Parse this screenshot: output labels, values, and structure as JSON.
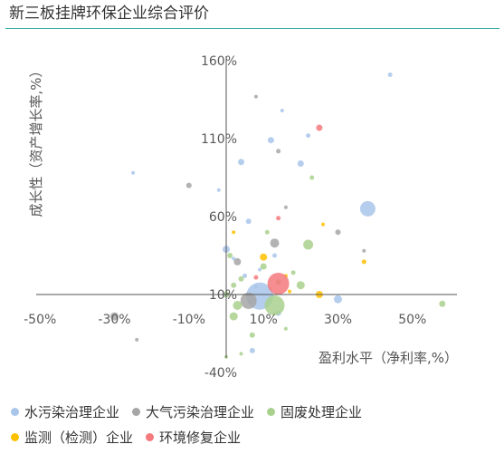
{
  "title": "新三板挂牌环保企业综合评价",
  "chart_data": {
    "type": "scatter",
    "title": "",
    "xlabel": "盈利水平（净利率,%）",
    "ylabel": "成长性（资产增长率,%）",
    "xlim": [
      -50,
      60
    ],
    "ylim": [
      -40,
      160
    ],
    "x_ticks": [
      "-50%",
      "-30%",
      "-10%",
      "10%",
      "30%",
      "50%"
    ],
    "y_ticks": [
      "160%",
      "110%",
      "60%",
      "10%",
      "-40%"
    ],
    "grid": false,
    "legend_position": "bottom",
    "colors": {
      "water": "#a9c6ea",
      "air": "#a6a6a6",
      "solid": "#a9d18e",
      "monitor": "#ffc000",
      "remediation": "#f4797c"
    },
    "series": [
      {
        "name": "水污染治理企业",
        "key": "water",
        "points": [
          {
            "x": 44,
            "y": 151,
            "size": 5
          },
          {
            "x": 12,
            "y": 109,
            "size": 7
          },
          {
            "x": 20,
            "y": 94,
            "size": 7
          },
          {
            "x": 4,
            "y": 95,
            "size": 7
          },
          {
            "x": -25,
            "y": 88,
            "size": 4
          },
          {
            "x": 38,
            "y": 65,
            "size": 17
          },
          {
            "x": 6,
            "y": 57,
            "size": 6
          },
          {
            "x": 0,
            "y": 39,
            "size": 8
          },
          {
            "x": 13,
            "y": 35,
            "size": 5
          },
          {
            "x": 2,
            "y": 33,
            "size": 4
          },
          {
            "x": 9,
            "y": 26,
            "size": 4
          },
          {
            "x": 5,
            "y": 22,
            "size": 5
          },
          {
            "x": 8,
            "y": 15,
            "size": 4
          },
          {
            "x": 9,
            "y": 9,
            "size": 30
          },
          {
            "x": 30,
            "y": 7,
            "size": 9
          },
          {
            "x": 14,
            "y": -2,
            "size": 6
          },
          {
            "x": 7,
            "y": -26,
            "size": 6
          },
          {
            "x": 15,
            "y": 128,
            "size": 4
          },
          {
            "x": 22,
            "y": 112,
            "size": 5
          },
          {
            "x": -2,
            "y": 77,
            "size": 4
          }
        ]
      },
      {
        "name": "大气污染治理企业",
        "key": "air",
        "points": [
          {
            "x": 8,
            "y": 137,
            "size": 4
          },
          {
            "x": 14,
            "y": 102,
            "size": 5
          },
          {
            "x": -10,
            "y": 80,
            "size": 6
          },
          {
            "x": 16,
            "y": 66,
            "size": 4
          },
          {
            "x": 30,
            "y": 50,
            "size": 6
          },
          {
            "x": 13,
            "y": 43,
            "size": 10
          },
          {
            "x": 3,
            "y": 31,
            "size": 8
          },
          {
            "x": 6,
            "y": 6,
            "size": 18
          },
          {
            "x": -30,
            "y": -4,
            "size": 9
          },
          {
            "x": -24,
            "y": -19,
            "size": 4
          },
          {
            "x": 37,
            "y": 38,
            "size": 4
          }
        ]
      },
      {
        "name": "固废处理企业",
        "key": "solid",
        "points": [
          {
            "x": 23,
            "y": 85,
            "size": 5
          },
          {
            "x": 11,
            "y": 50,
            "size": 5
          },
          {
            "x": 22,
            "y": 42,
            "size": 11
          },
          {
            "x": 1,
            "y": 35,
            "size": 6
          },
          {
            "x": 10,
            "y": 28,
            "size": 7
          },
          {
            "x": 18,
            "y": 24,
            "size": 5
          },
          {
            "x": 4,
            "y": 20,
            "size": 6
          },
          {
            "x": 2,
            "y": 16,
            "size": 6
          },
          {
            "x": 20,
            "y": 16,
            "size": 9
          },
          {
            "x": 0,
            "y": 10,
            "size": 7
          },
          {
            "x": 13,
            "y": 3,
            "size": 22
          },
          {
            "x": 3,
            "y": 3,
            "size": 10
          },
          {
            "x": 58,
            "y": 4,
            "size": 7
          },
          {
            "x": 2,
            "y": -4,
            "size": 9
          },
          {
            "x": 7,
            "y": -16,
            "size": 6
          },
          {
            "x": 4,
            "y": -28,
            "size": 4
          },
          {
            "x": 0,
            "y": -30,
            "size": 4
          },
          {
            "x": 16,
            "y": -12,
            "size": 4
          },
          {
            "x": 14,
            "y": 18,
            "size": 6
          }
        ]
      },
      {
        "name": "监测（检测）企业",
        "key": "monitor",
        "points": [
          {
            "x": 10,
            "y": 34,
            "size": 8
          },
          {
            "x": 16,
            "y": 22,
            "size": 4
          },
          {
            "x": 26,
            "y": 55,
            "size": 4
          },
          {
            "x": 37,
            "y": 31,
            "size": 5
          },
          {
            "x": 25,
            "y": 10,
            "size": 8
          },
          {
            "x": 2,
            "y": 50,
            "size": 4
          },
          {
            "x": 17,
            "y": 12,
            "size": 4
          }
        ]
      },
      {
        "name": "环境修复企业",
        "key": "remediation",
        "points": [
          {
            "x": 25,
            "y": 117,
            "size": 7
          },
          {
            "x": 14,
            "y": 59,
            "size": 5
          },
          {
            "x": 14,
            "y": 17,
            "size": 24
          },
          {
            "x": 8,
            "y": 21,
            "size": 5
          }
        ]
      }
    ]
  }
}
